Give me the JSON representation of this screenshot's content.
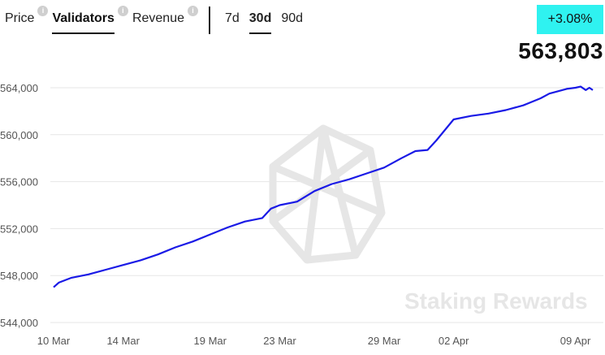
{
  "tabs": [
    {
      "label": "Price",
      "active": false,
      "info": true
    },
    {
      "label": "Validators",
      "active": true,
      "info": true
    },
    {
      "label": "Revenue",
      "active": false,
      "info": true
    }
  ],
  "ranges": [
    {
      "label": "7d",
      "active": false
    },
    {
      "label": "30d",
      "active": true
    },
    {
      "label": "90d",
      "active": false
    }
  ],
  "info_icon": "i",
  "change_badge": "+3.08%",
  "current_value": "563,803",
  "watermark": "Staking Rewards",
  "colors": {
    "line": "#1a1ae6",
    "badge": "#2ff2f0",
    "grid": "#e6e6e6"
  },
  "chart_data": {
    "type": "line",
    "title": "",
    "xlabel": "",
    "ylabel": "",
    "ylim": [
      544000,
      565000
    ],
    "yticks": [
      544000,
      548000,
      552000,
      556000,
      560000,
      564000
    ],
    "ytick_labels": [
      "544,000",
      "548,000",
      "552,000",
      "556,000",
      "560,000",
      "564,000"
    ],
    "xlim": [
      0,
      31
    ],
    "xticks": [
      {
        "x": 0,
        "label": "10 Mar"
      },
      {
        "x": 4,
        "label": "14 Mar"
      },
      {
        "x": 9,
        "label": "19 Mar"
      },
      {
        "x": 13,
        "label": "23 Mar"
      },
      {
        "x": 19,
        "label": "29 Mar"
      },
      {
        "x": 23,
        "label": "02 Apr"
      },
      {
        "x": 30,
        "label": "09 Apr"
      }
    ],
    "grid": true,
    "series": [
      {
        "x": [
          0,
          0.3,
          1,
          2,
          3,
          4,
          5,
          6,
          7,
          8,
          9,
          10,
          11,
          12,
          12.5,
          13,
          14,
          15,
          16,
          17,
          18,
          19,
          20,
          20.8,
          21.5,
          22,
          23,
          24,
          25,
          26,
          27,
          28,
          28.5,
          29,
          29.5,
          30,
          30.3,
          30.6,
          30.8,
          31
        ],
        "y": [
          547000,
          547400,
          547800,
          548100,
          548500,
          548900,
          549300,
          549800,
          550400,
          550900,
          551500,
          552100,
          552600,
          552900,
          553700,
          554000,
          554300,
          555200,
          555800,
          556200,
          556700,
          557200,
          558000,
          558600,
          558700,
          559500,
          561300,
          561600,
          561800,
          562100,
          562500,
          563100,
          563500,
          563700,
          563900,
          564000,
          564100,
          563800,
          564000,
          563800
        ]
      }
    ]
  }
}
